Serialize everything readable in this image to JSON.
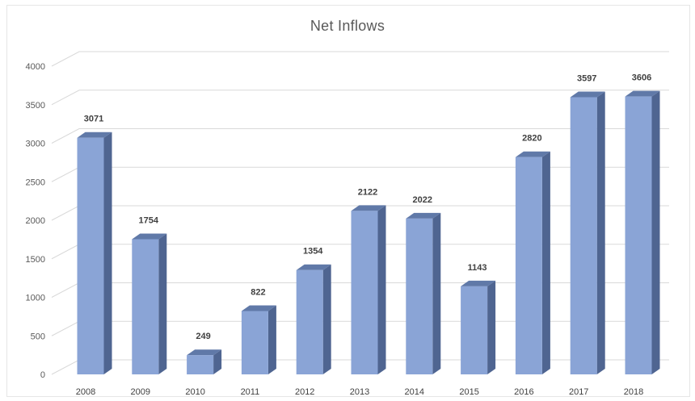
{
  "chart_data": {
    "type": "bar",
    "title": "Net Inflows",
    "categories": [
      "2008",
      "2009",
      "2010",
      "2011",
      "2012",
      "2013",
      "2014",
      "2015",
      "2016",
      "2017",
      "2018"
    ],
    "values": [
      3071,
      1754,
      249,
      822,
      1354,
      2122,
      2022,
      1143,
      2820,
      3597,
      3606
    ],
    "ylim": [
      0,
      4000
    ],
    "yticks": [
      0,
      500,
      1000,
      1500,
      2000,
      2500,
      3000,
      3500,
      4000
    ],
    "grid": true,
    "style": "3d-column",
    "colors": {
      "bar_front": "#8aa4d6",
      "bar_side": "#4f6591",
      "bar_top": "#6079a8",
      "gridline": "#d9d9d9"
    }
  }
}
